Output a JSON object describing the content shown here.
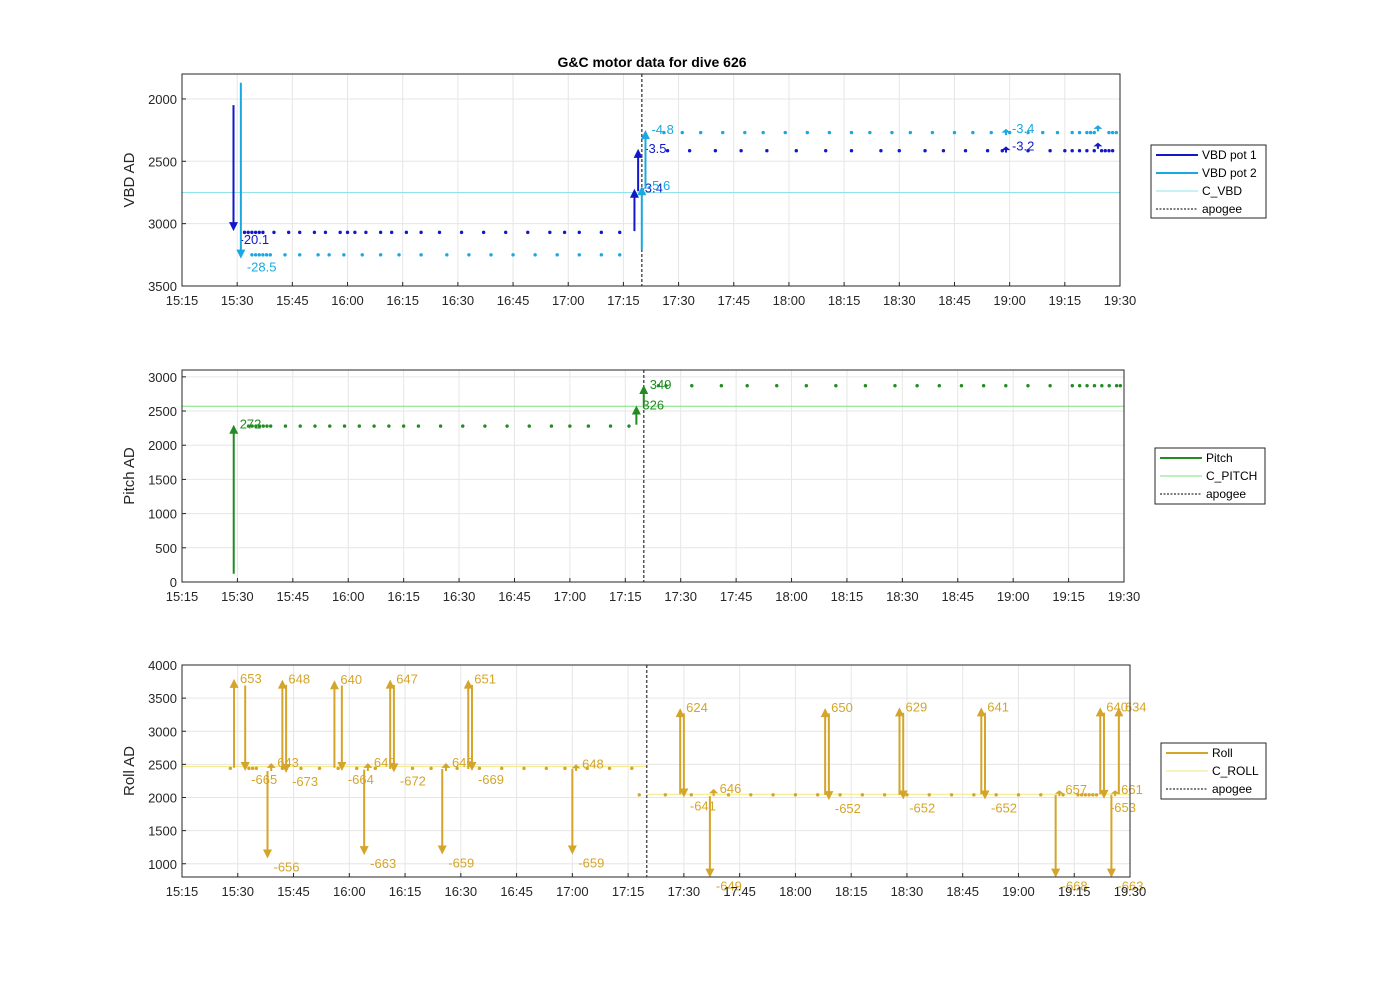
{
  "title": "G&C motor data for dive 626",
  "colors": {
    "vbd1": "#1218c8",
    "vbd2": "#19a8df",
    "c_vbd": "#8fe3ec",
    "pitch": "#228b22",
    "c_pitch": "#7ee07e",
    "roll": "#d4a52a",
    "c_roll": "#f3ea7a",
    "apogee": "#555555"
  },
  "chart_data": [
    {
      "type": "scatter",
      "id": "vbd",
      "ylabel": "VBD AD",
      "ylim": [
        3500,
        1800
      ],
      "y_reversed": true,
      "yticks": [
        2000,
        2500,
        3000,
        3500
      ],
      "xlim": [
        "15:15",
        "19:30"
      ],
      "xticks": [
        "15:15",
        "15:30",
        "15:45",
        "16:00",
        "16:15",
        "16:30",
        "16:45",
        "17:00",
        "17:15",
        "17:30",
        "17:45",
        "18:00",
        "18:15",
        "18:30",
        "18:45",
        "19:00",
        "19:15",
        "19:30"
      ],
      "grid": true,
      "legend_position": "outside-right",
      "legend": [
        "VBD pot 1",
        "VBD pot 2",
        "C_VBD",
        "apogee"
      ],
      "reference_line": {
        "name": "C_VBD",
        "y": 2750
      },
      "apogee": "17:20",
      "series": [
        {
          "name": "VBD pot 1",
          "color_key": "vbd1",
          "y": 3070,
          "y2": 2415,
          "x": [
            "15:32",
            "15:33",
            "15:34",
            "15:35",
            "15:36",
            "15:37",
            "15:40",
            "15:44",
            "15:47",
            "15:51",
            "15:54",
            "15:58",
            "16:00",
            "16:02",
            "16:05",
            "16:09",
            "16:12",
            "16:16",
            "16:20",
            "16:25",
            "16:31",
            "16:37",
            "16:43",
            "16:49",
            "16:55",
            "16:59",
            "17:03",
            "17:09",
            "17:14"
          ],
          "x2": [
            "17:27",
            "17:33",
            "17:40",
            "17:47",
            "17:54",
            "18:02",
            "18:10",
            "18:17",
            "18:25",
            "18:30",
            "18:37",
            "18:42",
            "18:48",
            "18:54",
            "18:58",
            "19:05",
            "19:11",
            "19:15",
            "19:17",
            "19:19",
            "19:21",
            "19:23",
            "19:25",
            "19:26",
            "19:27",
            "19:28"
          ]
        },
        {
          "name": "VBD pot 2",
          "color_key": "vbd2",
          "y": 3250,
          "y2": 2270,
          "x": [
            "15:34",
            "15:35",
            "15:36",
            "15:37",
            "15:38",
            "15:39",
            "15:43",
            "15:47",
            "15:52",
            "15:55",
            "15:59",
            "16:04",
            "16:09",
            "16:14",
            "16:20",
            "16:27",
            "16:33",
            "16:39",
            "16:45",
            "16:51",
            "16:57",
            "17:03",
            "17:09",
            "17:14"
          ],
          "x2": [
            "17:26",
            "17:31",
            "17:36",
            "17:42",
            "17:48",
            "17:53",
            "17:59",
            "18:05",
            "18:11",
            "18:17",
            "18:22",
            "18:28",
            "18:33",
            "18:39",
            "18:45",
            "18:50",
            "18:55",
            "19:00",
            "19:05",
            "19:09",
            "19:13",
            "19:17",
            "19:19",
            "19:21",
            "19:22",
            "19:23",
            "19:27",
            "19:28",
            "19:29"
          ]
        }
      ],
      "events": [
        {
          "series": "VBD pot 1",
          "x": "15:29",
          "from": 2050,
          "to": 3060,
          "label": "-20.1"
        },
        {
          "series": "VBD pot 2",
          "x": "15:31",
          "from": 1870,
          "to": 3280,
          "label": "-28.5"
        },
        {
          "series": "VBD pot 1",
          "x": "17:18",
          "from": 3060,
          "to": 2720,
          "label": "-3.4"
        },
        {
          "series": "VBD pot 1",
          "x": "17:19",
          "from": 2740,
          "to": 2400,
          "label": "-3.5"
        },
        {
          "series": "VBD pot 2",
          "x": "17:20",
          "from": 3210,
          "to": 2700,
          "label": "-5.6"
        },
        {
          "series": "VBD pot 2",
          "x": "17:21",
          "from": 2720,
          "to": 2250,
          "label": "-4.8"
        },
        {
          "series": "VBD pot 1",
          "x": "18:59",
          "from": 2430,
          "to": 2380,
          "label": "-3.2"
        },
        {
          "series": "VBD pot 2",
          "x": "18:59",
          "from": 2290,
          "to": 2240,
          "label": "-3.4"
        },
        {
          "series": "VBD pot 1",
          "x": "19:24",
          "from": 2400,
          "to": 2350,
          "label": ""
        },
        {
          "series": "VBD pot 2",
          "x": "19:24",
          "from": 2260,
          "to": 2210,
          "label": ""
        }
      ]
    },
    {
      "type": "scatter",
      "id": "pitch",
      "ylabel": "Pitch AD",
      "ylim": [
        0,
        3100
      ],
      "yticks": [
        0,
        500,
        1000,
        1500,
        2000,
        2500,
        3000
      ],
      "xlim": [
        "15:15",
        "19:30"
      ],
      "xticks": [
        "15:15",
        "15:30",
        "15:45",
        "16:00",
        "16:15",
        "16:30",
        "16:45",
        "17:00",
        "17:15",
        "17:30",
        "17:45",
        "18:00",
        "18:15",
        "18:30",
        "18:45",
        "19:00",
        "19:15",
        "19:30"
      ],
      "grid": true,
      "legend_position": "outside-right",
      "legend": [
        "Pitch",
        "C_PITCH",
        "apogee"
      ],
      "reference_line": {
        "name": "C_PITCH",
        "y": 2570
      },
      "apogee": "17:20",
      "series": [
        {
          "name": "Pitch",
          "color_key": "pitch",
          "y": 2280,
          "y2": 2870,
          "x": [
            "15:33",
            "15:34",
            "15:35",
            "15:36",
            "15:37",
            "15:38",
            "15:39",
            "15:43",
            "15:47",
            "15:51",
            "15:55",
            "15:59",
            "16:03",
            "16:07",
            "16:11",
            "16:15",
            "16:19",
            "16:25",
            "16:31",
            "16:37",
            "16:43",
            "16:49",
            "16:55",
            "17:00",
            "17:05",
            "17:11",
            "17:16"
          ],
          "x2": [
            "17:24",
            "17:26",
            "17:33",
            "17:41",
            "17:48",
            "17:56",
            "18:04",
            "18:12",
            "18:20",
            "18:28",
            "18:34",
            "18:40",
            "18:46",
            "18:52",
            "18:58",
            "19:04",
            "19:10",
            "19:16",
            "19:18",
            "19:20",
            "19:22",
            "19:24",
            "19:26",
            "19:28",
            "19:29"
          ]
        }
      ],
      "events": [
        {
          "series": "Pitch",
          "x": "15:29",
          "from": 120,
          "to": 2300,
          "label": "272"
        },
        {
          "series": "Pitch",
          "x": "17:18",
          "from": 2300,
          "to": 2580,
          "label": "326"
        },
        {
          "series": "Pitch",
          "x": "17:20",
          "from": 2580,
          "to": 2880,
          "label": "349"
        }
      ]
    },
    {
      "type": "scatter",
      "id": "roll",
      "ylabel": "Roll AD",
      "ylim": [
        800,
        4000
      ],
      "yticks": [
        1000,
        1500,
        2000,
        2500,
        3000,
        3500,
        4000
      ],
      "xlim": [
        "15:15",
        "19:30"
      ],
      "xticks": [
        "15:15",
        "15:30",
        "15:45",
        "16:00",
        "16:15",
        "16:30",
        "16:45",
        "17:00",
        "17:15",
        "17:30",
        "17:45",
        "18:00",
        "18:15",
        "18:30",
        "18:45",
        "19:00",
        "19:15",
        "19:30"
      ],
      "grid": true,
      "legend_position": "outside-right",
      "legend": [
        "Roll",
        "C_ROLL",
        "apogee"
      ],
      "reference_lines": [
        {
          "name": "C_ROLL",
          "y": 2470,
          "x_from": "15:15",
          "x_to": "17:20"
        },
        {
          "name": "C_ROLL",
          "y": 2050,
          "x_from": "17:20",
          "x_to": "19:30"
        }
      ],
      "apogee": "17:20",
      "series": [
        {
          "name": "Roll",
          "color_key": "roll",
          "y": 2440,
          "y2": 2040,
          "x": [
            "15:28",
            "15:33",
            "15:34",
            "15:35",
            "15:42",
            "15:47",
            "15:52",
            "15:57",
            "16:02",
            "16:07",
            "16:12",
            "16:17",
            "16:22",
            "16:29",
            "16:35",
            "16:41",
            "16:47",
            "16:53",
            "16:58",
            "17:04",
            "17:10",
            "17:16"
          ],
          "x2": [
            "17:18",
            "17:25",
            "17:32",
            "17:42",
            "17:48",
            "17:54",
            "18:00",
            "18:06",
            "18:12",
            "18:18",
            "18:24",
            "18:30",
            "18:36",
            "18:42",
            "18:48",
            "18:54",
            "19:00",
            "19:06",
            "19:12",
            "19:16",
            "19:17",
            "19:18",
            "19:19",
            "19:20",
            "19:21"
          ]
        }
      ],
      "events": [
        {
          "series": "Roll",
          "x": "15:29",
          "from": 2450,
          "to": 3790,
          "label": "653"
        },
        {
          "series": "Roll",
          "x": "15:32",
          "from": 3690,
          "to": 2400,
          "label": "-665"
        },
        {
          "series": "Roll",
          "x": "15:38",
          "from": 2400,
          "to": 1080,
          "label": "-656"
        },
        {
          "series": "Roll",
          "x": "15:39",
          "from": 2400,
          "to": 2520,
          "label": "643"
        },
        {
          "series": "Roll",
          "x": "15:42",
          "from": 2430,
          "to": 3780,
          "label": "648"
        },
        {
          "series": "Roll",
          "x": "15:43",
          "from": 3700,
          "to": 2370,
          "label": "-673"
        },
        {
          "series": "Roll",
          "x": "15:56",
          "from": 2450,
          "to": 3770,
          "label": "640"
        },
        {
          "series": "Roll",
          "x": "15:58",
          "from": 3690,
          "to": 2400,
          "label": "-664"
        },
        {
          "series": "Roll",
          "x": "16:04",
          "from": 2420,
          "to": 1130,
          "label": "-663"
        },
        {
          "series": "Roll",
          "x": "16:05",
          "from": 2400,
          "to": 2520,
          "label": "649"
        },
        {
          "series": "Roll",
          "x": "16:11",
          "from": 2430,
          "to": 3780,
          "label": "647"
        },
        {
          "series": "Roll",
          "x": "16:12",
          "from": 3700,
          "to": 2380,
          "label": "-672"
        },
        {
          "series": "Roll",
          "x": "16:25",
          "from": 2430,
          "to": 1140,
          "label": "-659"
        },
        {
          "series": "Roll",
          "x": "16:26",
          "from": 2400,
          "to": 2520,
          "label": "646"
        },
        {
          "series": "Roll",
          "x": "16:32",
          "from": 2430,
          "to": 3780,
          "label": "651"
        },
        {
          "series": "Roll",
          "x": "16:33",
          "from": 3700,
          "to": 2400,
          "label": "-669"
        },
        {
          "series": "Roll",
          "x": "17:00",
          "from": 2430,
          "to": 1140,
          "label": "-659"
        },
        {
          "series": "Roll",
          "x": "17:01",
          "from": 2400,
          "to": 2500,
          "label": "648"
        },
        {
          "series": "Roll",
          "x": "17:29",
          "from": 2050,
          "to": 3350,
          "label": "624"
        },
        {
          "series": "Roll",
          "x": "17:30",
          "from": 3270,
          "to": 2000,
          "label": "-641"
        },
        {
          "series": "Roll",
          "x": "17:37",
          "from": 2020,
          "to": 790,
          "label": "-649"
        },
        {
          "series": "Roll",
          "x": "17:38",
          "from": 2020,
          "to": 2130,
          "label": "646"
        },
        {
          "series": "Roll",
          "x": "18:08",
          "from": 2040,
          "to": 3350,
          "label": "650"
        },
        {
          "series": "Roll",
          "x": "18:09",
          "from": 3270,
          "to": 1960,
          "label": "-652"
        },
        {
          "series": "Roll",
          "x": "18:28",
          "from": 2040,
          "to": 3360,
          "label": "629"
        },
        {
          "series": "Roll",
          "x": "18:29",
          "from": 3280,
          "to": 1970,
          "label": "-652"
        },
        {
          "series": "Roll",
          "x": "18:50",
          "from": 2050,
          "to": 3360,
          "label": "641"
        },
        {
          "series": "Roll",
          "x": "18:51",
          "from": 3280,
          "to": 1970,
          "label": "-652"
        },
        {
          "series": "Roll",
          "x": "19:10",
          "from": 2040,
          "to": 790,
          "label": "-668"
        },
        {
          "series": "Roll",
          "x": "19:11",
          "from": 2020,
          "to": 2110,
          "label": "657"
        },
        {
          "series": "Roll",
          "x": "19:22",
          "from": 2050,
          "to": 3360,
          "label": "640"
        },
        {
          "series": "Roll",
          "x": "19:23",
          "from": 3280,
          "to": 1980,
          "label": "-653"
        },
        {
          "series": "Roll",
          "x": "19:25",
          "from": 2040,
          "to": 790,
          "label": "-663"
        },
        {
          "series": "Roll",
          "x": "19:26",
          "from": 2020,
          "to": 2110,
          "label": "661"
        },
        {
          "series": "Roll",
          "x": "19:27",
          "from": 2050,
          "to": 3360,
          "label": "634"
        }
      ]
    }
  ]
}
